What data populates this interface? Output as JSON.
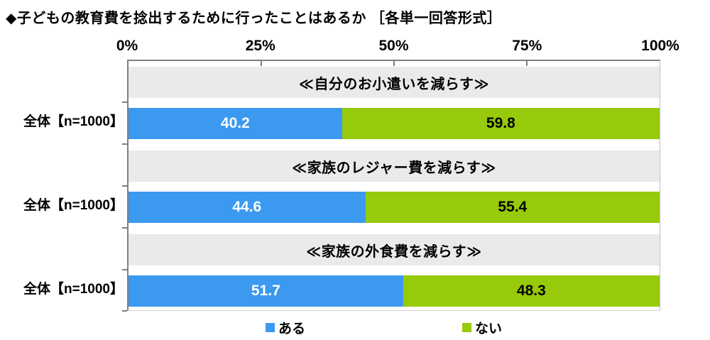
{
  "title": "◆子どもの教育費を捻出するために行ったことはあるか ［各単一回答形式］",
  "chart_data": {
    "type": "bar",
    "subtype": "horizontal-stacked-100percent",
    "title": "◆子どもの教育費を捻出するために行ったことはあるか ［各単一回答形式］",
    "x_axis": {
      "range": [
        0,
        100
      ],
      "tick_values": [
        0,
        25,
        50,
        75,
        100
      ],
      "ticks": [
        "0%",
        "25%",
        "50%",
        "75%",
        "100%"
      ],
      "grid": false
    },
    "row_label": "全体【n=1000】",
    "categories": [
      "≪自分のお小遣いを減らす≫",
      "≪家族のレジャー費を減らす≫",
      "≪家族の外食費を減らす≫"
    ],
    "series": [
      {
        "name": "ある",
        "values": [
          40.2,
          44.6,
          51.7
        ]
      },
      {
        "name": "ない",
        "values": [
          59.8,
          55.4,
          48.3
        ]
      }
    ],
    "legend": {
      "position": "bottom",
      "entries": [
        "ある",
        "ない"
      ]
    },
    "colors": {
      "ある": "#3B99F0",
      "ない": "#96CA0A",
      "band": "#EAEAEA",
      "value_text_on_blue": "#FFFFFF",
      "value_text_on_green": "#000000"
    }
  }
}
